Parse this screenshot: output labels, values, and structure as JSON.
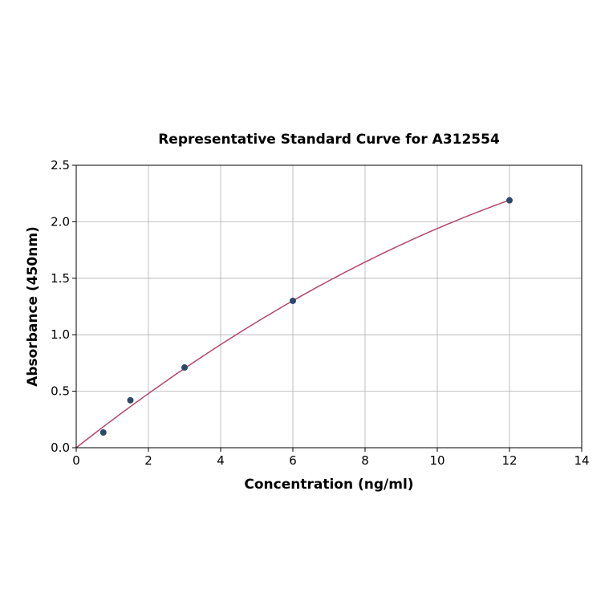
{
  "chart_data": {
    "type": "scatter",
    "title": "Representative Standard Curve for A312554",
    "xlabel": "Concentration (ng/ml)",
    "ylabel": "Absorbance (450nm)",
    "xlim": [
      0,
      14
    ],
    "ylim": [
      0,
      2.5
    ],
    "xticks": [
      "0",
      "2",
      "4",
      "6",
      "8",
      "10",
      "12",
      "14"
    ],
    "yticks": [
      "0.0",
      "0.5",
      "1.0",
      "1.5",
      "2.0",
      "2.5"
    ],
    "grid": true,
    "points": [
      {
        "x": 0.75,
        "y": 0.135
      },
      {
        "x": 1.5,
        "y": 0.42
      },
      {
        "x": 3,
        "y": 0.71
      },
      {
        "x": 6,
        "y": 1.3
      },
      {
        "x": 12,
        "y": 2.19
      }
    ],
    "fit_curve": {
      "x_range": [
        0,
        12
      ],
      "coefficients": {
        "linear": 0.251,
        "quadratic": -0.0057
      }
    },
    "colors": {
      "points": "#2b4a6b",
      "curve": "#b5466b",
      "grid": "#b0b0b0"
    }
  }
}
